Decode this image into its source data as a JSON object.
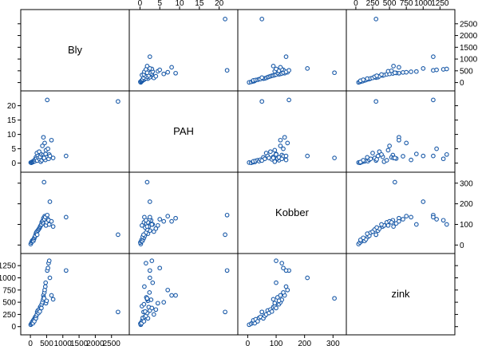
{
  "chart_data": {
    "type": "scatter",
    "subtype": "scatterplot-matrix",
    "variables": [
      "Bly",
      "PAH",
      "Kobber",
      "zink"
    ],
    "axes": {
      "Bly": {
        "ticks": [
          0,
          500,
          1000,
          1500,
          2000,
          2500
        ],
        "tick_labels": [
          "0",
          "500",
          "1000",
          "1500",
          "2000",
          "2500"
        ],
        "range": [
          -150,
          2900
        ]
      },
      "PAH": {
        "ticks": [
          0,
          5,
          10,
          15,
          20
        ],
        "tick_labels": [
          "0",
          "5",
          "10",
          "15",
          "20"
        ],
        "range": [
          -1.5,
          23.5
        ]
      },
      "Kobber": {
        "ticks": [
          0,
          100,
          200,
          300
        ],
        "tick_labels": [
          "0",
          "100",
          "200",
          "300"
        ],
        "range": [
          -18,
          330
        ]
      },
      "zink": {
        "ticks": [
          0,
          250,
          500,
          750,
          1000,
          1250
        ],
        "tick_labels": [
          "0",
          "250",
          "500",
          "750",
          "1000",
          "1250"
        ],
        "range": [
          -70,
          1400
        ]
      }
    },
    "observations": [
      {
        "Bly": 10,
        "PAH": 0.2,
        "Kobber": 5,
        "zink": 40
      },
      {
        "Bly": 30,
        "PAH": 0.1,
        "Kobber": 12,
        "zink": 60
      },
      {
        "Bly": 50,
        "PAH": 0.3,
        "Kobber": 18,
        "zink": 80
      },
      {
        "Bly": 60,
        "PAH": 0.5,
        "Kobber": 22,
        "zink": 100
      },
      {
        "Bly": 80,
        "PAH": 0.4,
        "Kobber": 25,
        "zink": 70
      },
      {
        "Bly": 90,
        "PAH": 0.6,
        "Kobber": 20,
        "zink": 130
      },
      {
        "Bly": 110,
        "PAH": 0.8,
        "Kobber": 28,
        "zink": 150
      },
      {
        "Bly": 120,
        "PAH": 1.0,
        "Kobber": 35,
        "zink": 110
      },
      {
        "Bly": 140,
        "PAH": 0.7,
        "Kobber": 40,
        "zink": 180
      },
      {
        "Bly": 150,
        "PAH": 1.2,
        "Kobber": 45,
        "zink": 200
      },
      {
        "Bly": 170,
        "PAH": 2.0,
        "Kobber": 55,
        "zink": 170
      },
      {
        "Bly": 180,
        "PAH": 1.5,
        "Kobber": 60,
        "zink": 220
      },
      {
        "Bly": 200,
        "PAH": 3.5,
        "Kobber": 65,
        "zink": 250
      },
      {
        "Bly": 210,
        "PAH": 0.9,
        "Kobber": 50,
        "zink": 300
      },
      {
        "Bly": 230,
        "PAH": 2.5,
        "Kobber": 70,
        "zink": 330
      },
      {
        "Bly": 250,
        "PAH": 1.8,
        "Kobber": 75,
        "zink": 280
      },
      {
        "Bly": 270,
        "PAH": 4.0,
        "Kobber": 80,
        "zink": 350
      },
      {
        "Bly": 290,
        "PAH": 1.3,
        "Kobber": 85,
        "zink": 310
      },
      {
        "Bly": 300,
        "PAH": 2.2,
        "Kobber": 90,
        "zink": 400
      },
      {
        "Bly": 320,
        "PAH": 0.5,
        "Kobber": 95,
        "zink": 420
      },
      {
        "Bly": 340,
        "PAH": 3.0,
        "Kobber": 100,
        "zink": 380
      },
      {
        "Bly": 350,
        "PAH": 1.0,
        "Kobber": 110,
        "zink": 460
      },
      {
        "Bly": 370,
        "PAH": 6.0,
        "Kobber": 115,
        "zink": 500
      },
      {
        "Bly": 390,
        "PAH": 2.8,
        "Kobber": 120,
        "zink": 550
      },
      {
        "Bly": 400,
        "PAH": 9.0,
        "Kobber": 130,
        "zink": 640
      },
      {
        "Bly": 410,
        "PAH": 1.6,
        "Kobber": 105,
        "zink": 600
      },
      {
        "Bly": 430,
        "PAH": 2.4,
        "Kobber": 125,
        "zink": 700
      },
      {
        "Bly": 440,
        "PAH": 7.0,
        "Kobber": 140,
        "zink": 750
      },
      {
        "Bly": 460,
        "PAH": 1.1,
        "Kobber": 135,
        "zink": 820
      },
      {
        "Bly": 470,
        "PAH": 3.2,
        "Kobber": 100,
        "zink": 900
      },
      {
        "Bly": 480,
        "PAH": 4.5,
        "Kobber": 95,
        "zink": 480
      },
      {
        "Bly": 500,
        "PAH": 2.0,
        "Kobber": 110,
        "zink": 530
      },
      {
        "Bly": 520,
        "PAH": 22.0,
        "Kobber": 145,
        "zink": 1150
      },
      {
        "Bly": 540,
        "PAH": 5.0,
        "Kobber": 125,
        "zink": 1200
      },
      {
        "Bly": 560,
        "PAH": 1.5,
        "Kobber": 120,
        "zink": 1300
      },
      {
        "Bly": 580,
        "PAH": 3.0,
        "Kobber": 100,
        "zink": 1350
      },
      {
        "Bly": 600,
        "PAH": 2.5,
        "Kobber": 210,
        "zink": 1000
      },
      {
        "Bly": 650,
        "PAH": 8.0,
        "Kobber": 115,
        "zink": 640
      },
      {
        "Bly": 700,
        "PAH": 1.8,
        "Kobber": 90,
        "zink": 560
      },
      {
        "Bly": 1100,
        "PAH": 2.5,
        "Kobber": 135,
        "zink": 1150
      },
      {
        "Bly": 2700,
        "PAH": 21.5,
        "Kobber": 50,
        "zink": 300
      },
      {
        "Bly": 420,
        "PAH": 1.8,
        "Kobber": 305,
        "zink": 580
      }
    ]
  }
}
